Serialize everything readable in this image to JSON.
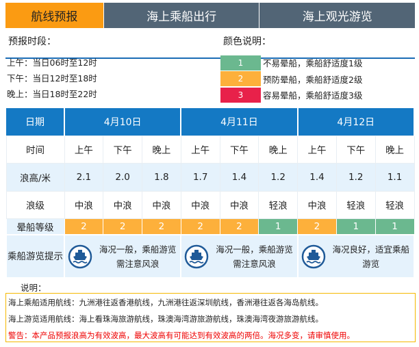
{
  "tabs": [
    {
      "label": "航线预报",
      "active": true
    },
    {
      "label": "海上乘船出行"
    },
    {
      "label": "海上观光游览"
    }
  ],
  "forecast_period_title": "预报时段：",
  "color_legend_title": "颜色说明：",
  "periods": [
    "上午：当日06时至12时",
    "下午：当日12时至18时",
    "晚上：当日18时至22时"
  ],
  "legend": [
    {
      "level": "1",
      "text": "不易晕船，乘船舒适度1级",
      "color": "#6bb88f"
    },
    {
      "level": "2",
      "text": "预防晕船，乘船舒适度2级",
      "color": "#fdb03b"
    },
    {
      "level": "3",
      "text": "容易晕船，乘船舒适度3级",
      "color": "#e8214a"
    }
  ],
  "table": {
    "date_label": "日期",
    "dates": [
      "4月10日",
      "4月11日",
      "4月12日"
    ],
    "time_label": "时间",
    "times": [
      "上午",
      "下午",
      "晚上",
      "上午",
      "下午",
      "晚上",
      "上午",
      "下午",
      "晚上"
    ],
    "height_label": "浪高/米",
    "heights": [
      "2.1",
      "2.0",
      "1.8",
      "1.7",
      "1.4",
      "1.2",
      "1.4",
      "1.2",
      "1.1"
    ],
    "wave_label": "浪级",
    "waves": [
      "中浪",
      "中浪",
      "中浪",
      "中浪",
      "中浪",
      "轻浪",
      "中浪",
      "轻浪",
      "轻浪"
    ],
    "seasick_label": "晕船等级",
    "seasick": [
      "2",
      "2",
      "2",
      "2",
      "2",
      "1",
      "2",
      "1",
      "1"
    ],
    "tip_label": "乘船游览提示",
    "tips": [
      "海况一般，乘船游览需注意风浪",
      "海况一般，乘船游览需注意风浪",
      "海况良好，适宜乘船游览"
    ]
  },
  "note_title": "说明：",
  "notes": [
    "海上乘船适用航线：九洲港往返香港航线，九洲港往返深圳航线，香洲港往返各海岛航线。",
    "海上游览适用航线：海上看珠海旅游航线，珠澳海湾游旅游航线，珠澳海湾夜游旅游航线。"
  ],
  "warning": "警告：本产品预报浪高为有效波高，最大波高有可能达到有效波高的两倍。海况多变，请审慎使用。"
}
